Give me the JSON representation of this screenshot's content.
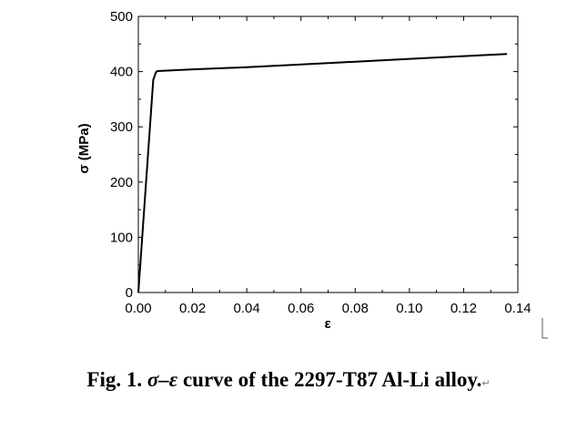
{
  "chart_data": {
    "type": "line",
    "xlabel": "ε",
    "ylabel": "σ (MPa)",
    "xlim": [
      0.0,
      0.14
    ],
    "ylim": [
      0,
      500
    ],
    "x_ticks": [
      "0.00",
      "0.02",
      "0.04",
      "0.06",
      "0.08",
      "0.10",
      "0.12",
      "0.14"
    ],
    "x_tick_values": [
      0.0,
      0.02,
      0.04,
      0.06,
      0.08,
      0.1,
      0.12,
      0.14
    ],
    "y_ticks": [
      "0",
      "100",
      "200",
      "300",
      "400",
      "500"
    ],
    "y_tick_values": [
      0,
      100,
      200,
      300,
      400,
      500
    ],
    "grid": false,
    "legend": "none",
    "series": [
      {
        "x": [
          0.0,
          0.0055,
          0.0065,
          0.007,
          0.02,
          0.04,
          0.06,
          0.08,
          0.1,
          0.12,
          0.136
        ],
        "y": [
          0,
          385,
          399,
          401,
          404,
          408,
          413,
          418,
          423,
          428,
          432
        ]
      }
    ]
  },
  "caption": {
    "prefix": "Fig. 1. ",
    "symbols": "σ–ε",
    "suffix": " curve of the 2297-T87 Al-Li alloy.",
    "return_mark": "↵"
  },
  "colors": {
    "line": "#000000",
    "axis": "#000000",
    "text_cursor": "#555555"
  }
}
